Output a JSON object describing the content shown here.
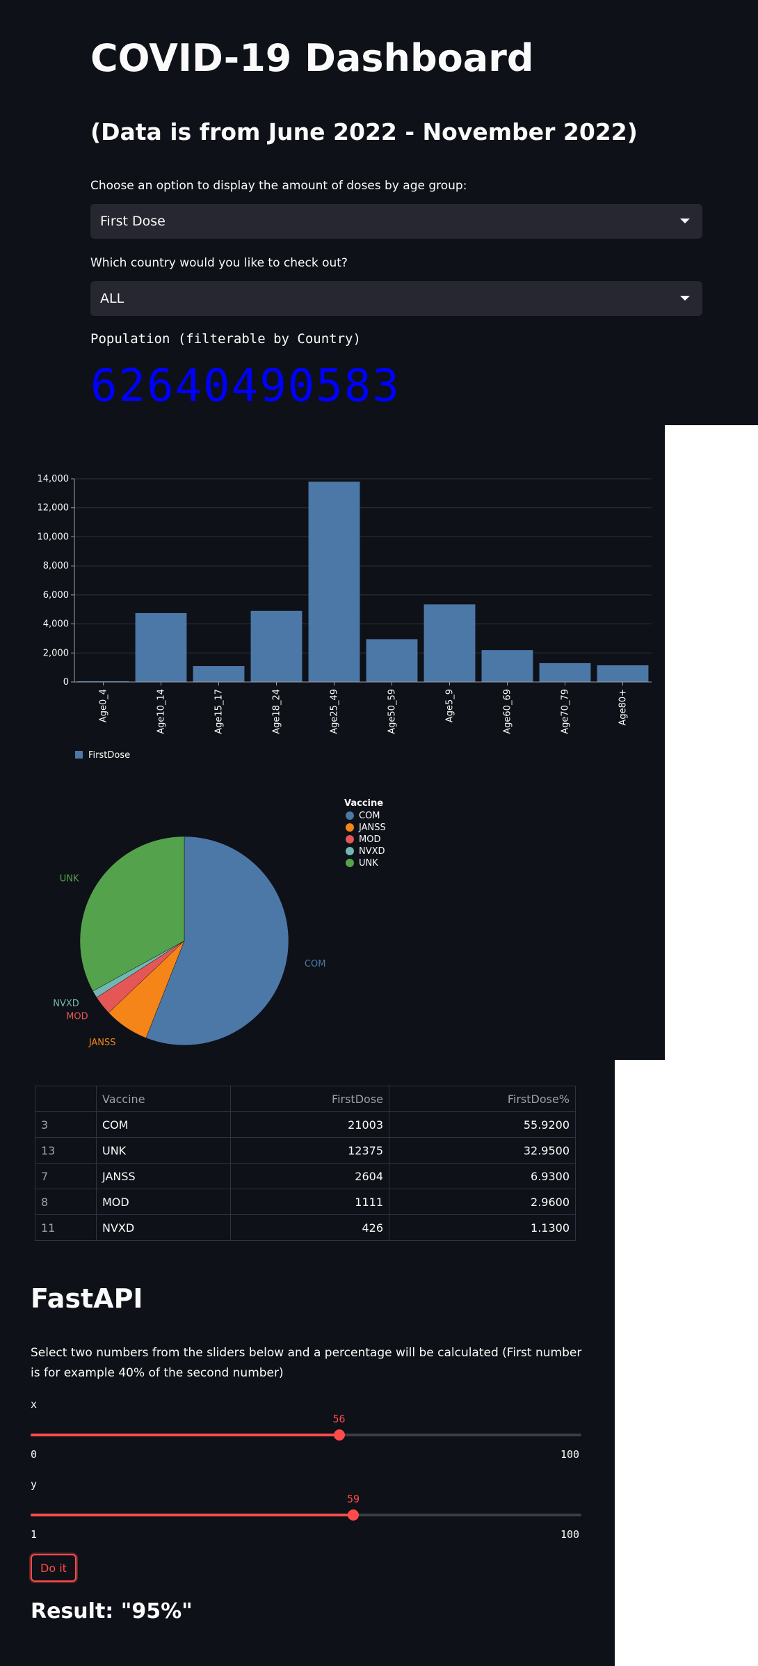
{
  "header": {
    "title": "COVID-19 Dashboard",
    "subtitle": "(Data is from June 2022 - November 2022)"
  },
  "dose_select": {
    "label": "Choose an option to display the amount of doses by age group:",
    "value": "First Dose"
  },
  "country_select": {
    "label": "Which country would you like to check out?",
    "value": "ALL"
  },
  "metric": {
    "label": "Population (filterable by Country)",
    "value": "62640490583"
  },
  "colors": {
    "bar": "#4c78a8",
    "com": "#4c78a8",
    "janss": "#f58518",
    "mod": "#e45756",
    "nvxd": "#72b7b2",
    "unk": "#54a24b",
    "accent": "#ff4b4b"
  },
  "chart_data": [
    {
      "type": "bar",
      "categories": [
        "Age0_4",
        "Age10_14",
        "Age15_17",
        "Age18_24",
        "Age25_49",
        "Age50_59",
        "Age5_9",
        "Age60_69",
        "Age70_79",
        "Age80+"
      ],
      "series": [
        {
          "name": "FirstDose",
          "values": [
            50,
            4750,
            1100,
            4900,
            13800,
            2950,
            5350,
            2200,
            1300,
            1150
          ]
        }
      ],
      "yticks": [
        "0",
        "2,000",
        "4,000",
        "6,000",
        "8,000",
        "10,000",
        "12,000",
        "14,000"
      ],
      "ylim": [
        0,
        14000
      ],
      "grid": true,
      "legend": "bottom-left"
    },
    {
      "type": "pie",
      "legend_title": "Vaccine",
      "legend": "top-right",
      "slices": [
        {
          "name": "COM",
          "value": 21003
        },
        {
          "name": "JANSS",
          "value": 2604
        },
        {
          "name": "MOD",
          "value": 1111
        },
        {
          "name": "NVXD",
          "value": 426
        },
        {
          "name": "UNK",
          "value": 12375
        }
      ]
    }
  ],
  "table": {
    "columns": [
      "",
      "Vaccine",
      "FirstDose",
      "FirstDose%"
    ],
    "rows": [
      [
        "3",
        "COM",
        "21003",
        "55.9200"
      ],
      [
        "13",
        "UNK",
        "12375",
        "32.9500"
      ],
      [
        "7",
        "JANSS",
        "2604",
        "6.9300"
      ],
      [
        "8",
        "MOD",
        "1111",
        "2.9600"
      ],
      [
        "11",
        "NVXD",
        "426",
        "1.1300"
      ]
    ]
  },
  "fastapi": {
    "heading": "FastAPI",
    "description": "Select two numbers from the sliders below and a percentage will be calculated (First number is for example 40% of the second number)",
    "slider_x": {
      "label": "x",
      "value": 56,
      "min": 0,
      "max": 100
    },
    "slider_y": {
      "label": "y",
      "value": 59,
      "min": 1,
      "max": 100
    },
    "button_label": "Do it",
    "result": "Result: \"95%\""
  }
}
